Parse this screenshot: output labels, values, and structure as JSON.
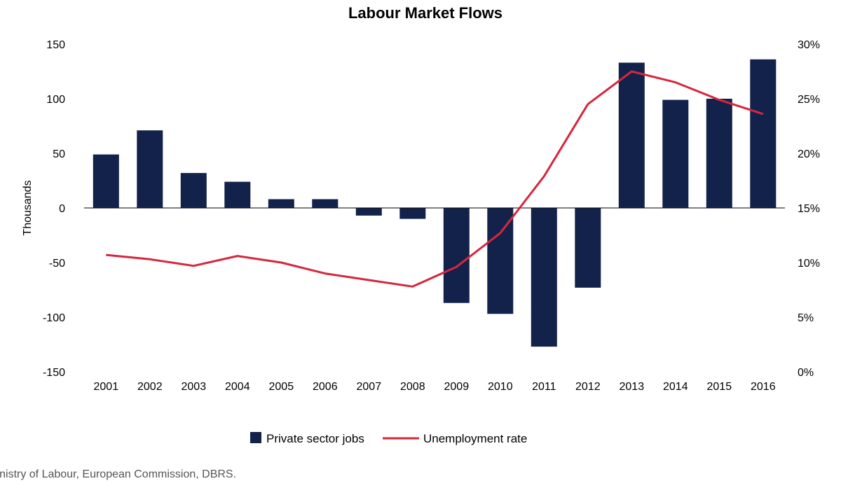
{
  "chart_data": {
    "type": "bar",
    "title": "Labour Market Flows",
    "categories": [
      "2001",
      "2002",
      "2003",
      "2004",
      "2005",
      "2006",
      "2007",
      "2008",
      "2009",
      "2010",
      "2011",
      "2012",
      "2013",
      "2014",
      "2015",
      "2016"
    ],
    "series": [
      {
        "name": "Private sector jobs",
        "type": "bar",
        "axis": "left",
        "color": "#13224a",
        "values": [
          49,
          71,
          32,
          24,
          8,
          8,
          -7,
          -10,
          -87,
          -97,
          -127,
          -73,
          133,
          99,
          100,
          136
        ]
      },
      {
        "name": "Unemployment rate",
        "type": "line",
        "axis": "right",
        "color": "#d7263d",
        "values": [
          10.7,
          10.3,
          9.7,
          10.6,
          10.0,
          9.0,
          8.4,
          7.8,
          9.6,
          12.7,
          17.9,
          24.5,
          27.5,
          26.5,
          24.9,
          23.6
        ]
      }
    ],
    "ylabel": "Thousands",
    "ylim": [
      -150,
      150
    ],
    "y_ticks": [
      "150",
      "100",
      "50",
      "0",
      "-50",
      "-100",
      "-150"
    ],
    "y2lim": [
      0,
      30
    ],
    "y2_ticks": [
      "30%",
      "25%",
      "20%",
      "15%",
      "10%",
      "5%",
      "0%"
    ],
    "legend_position": "bottom",
    "grid": false
  },
  "source": "linistry of Labour, European Commission, DBRS."
}
